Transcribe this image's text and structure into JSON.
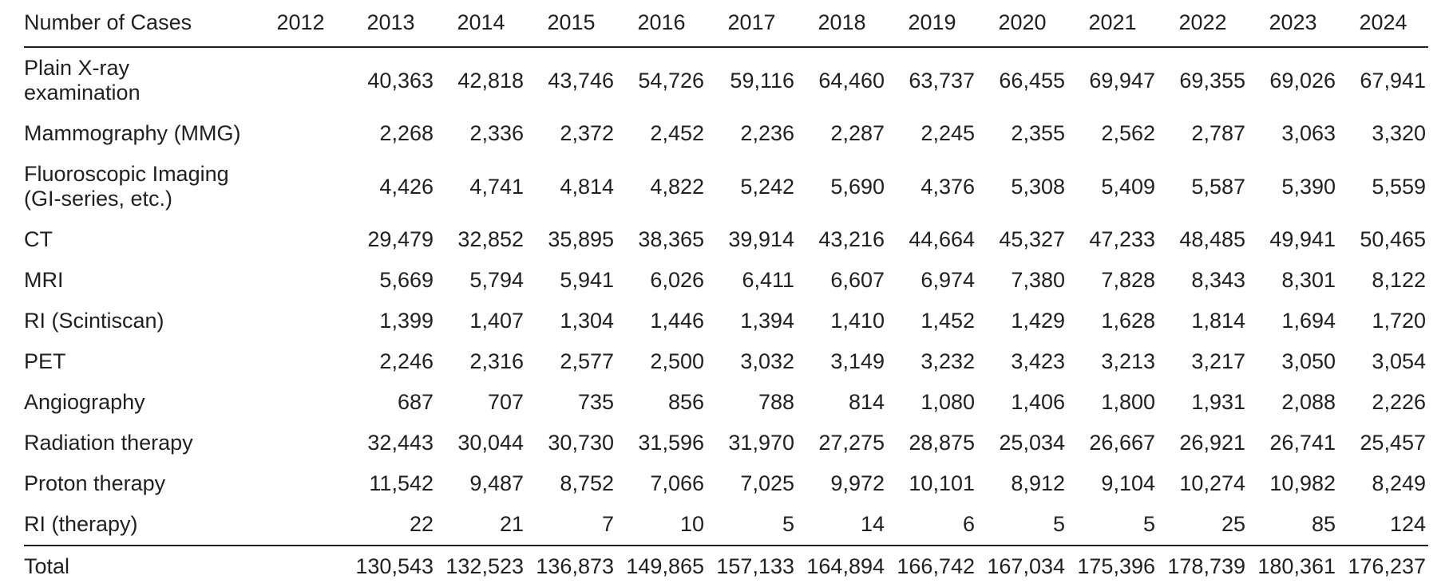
{
  "table": {
    "header": {
      "label": "Number of Cases",
      "years": [
        "2012",
        "2013",
        "2014",
        "2015",
        "2016",
        "2017",
        "2018",
        "2019",
        "2020",
        "2021",
        "2022",
        "2023",
        "2024"
      ]
    },
    "rows": [
      {
        "label": "Plain X-ray\nexamination",
        "values": [
          "",
          "40,363",
          "42,818",
          "43,746",
          "54,726",
          "59,116",
          "64,460",
          "63,737",
          "66,455",
          "69,947",
          "69,355",
          "69,026",
          "67,941"
        ]
      },
      {
        "label": "Mammography (MMG)",
        "values": [
          "",
          "2,268",
          "2,336",
          "2,372",
          "2,452",
          "2,236",
          "2,287",
          "2,245",
          "2,355",
          "2,562",
          "2,787",
          "3,063",
          "3,320"
        ]
      },
      {
        "label": "Fluoroscopic Imaging\n(GI-series, etc.)",
        "values": [
          "",
          "4,426",
          "4,741",
          "4,814",
          "4,822",
          "5,242",
          "5,690",
          "4,376",
          "5,308",
          "5,409",
          "5,587",
          "5,390",
          "5,559"
        ]
      },
      {
        "label": "CT",
        "values": [
          "",
          "29,479",
          "32,852",
          "35,895",
          "38,365",
          "39,914",
          "43,216",
          "44,664",
          "45,327",
          "47,233",
          "48,485",
          "49,941",
          "50,465"
        ]
      },
      {
        "label": "MRI",
        "values": [
          "",
          "5,669",
          "5,794",
          "5,941",
          "6,026",
          "6,411",
          "6,607",
          "6,974",
          "7,380",
          "7,828",
          "8,343",
          "8,301",
          "8,122"
        ]
      },
      {
        "label": "RI (Scintiscan)",
        "values": [
          "",
          "1,399",
          "1,407",
          "1,304",
          "1,446",
          "1,394",
          "1,410",
          "1,452",
          "1,429",
          "1,628",
          "1,814",
          "1,694",
          "1,720"
        ]
      },
      {
        "label": "PET",
        "values": [
          "",
          "2,246",
          "2,316",
          "2,577",
          "2,500",
          "3,032",
          "3,149",
          "3,232",
          "3,423",
          "3,213",
          "3,217",
          "3,050",
          "3,054"
        ]
      },
      {
        "label": "Angiography",
        "values": [
          "",
          "687",
          "707",
          "735",
          "856",
          "788",
          "814",
          "1,080",
          "1,406",
          "1,800",
          "1,931",
          "2,088",
          "2,226"
        ]
      },
      {
        "label": "Radiation therapy",
        "values": [
          "",
          "32,443",
          "30,044",
          "30,730",
          "31,596",
          "31,970",
          "27,275",
          "28,875",
          "25,034",
          "26,667",
          "26,921",
          "26,741",
          "25,457"
        ]
      },
      {
        "label": "Proton therapy",
        "values": [
          "",
          "11,542",
          "9,487",
          "8,752",
          "7,066",
          "7,025",
          "9,972",
          "10,101",
          "8,912",
          "9,104",
          "10,274",
          "10,982",
          "8,249"
        ]
      },
      {
        "label": "RI (therapy)",
        "values": [
          "",
          "22",
          "21",
          "7",
          "10",
          "5",
          "14",
          "6",
          "5",
          "5",
          "25",
          "85",
          "124"
        ]
      }
    ],
    "total": {
      "label": "Total",
      "values": [
        "",
        "130,543",
        "132,523",
        "136,873",
        "149,865",
        "157,133",
        "164,894",
        "166,742",
        "167,034",
        "175,396",
        "178,739",
        "180,361",
        "176,237"
      ]
    },
    "colors": {
      "text": "#231f20",
      "rule": "#231f20",
      "background": "#ffffff"
    }
  }
}
